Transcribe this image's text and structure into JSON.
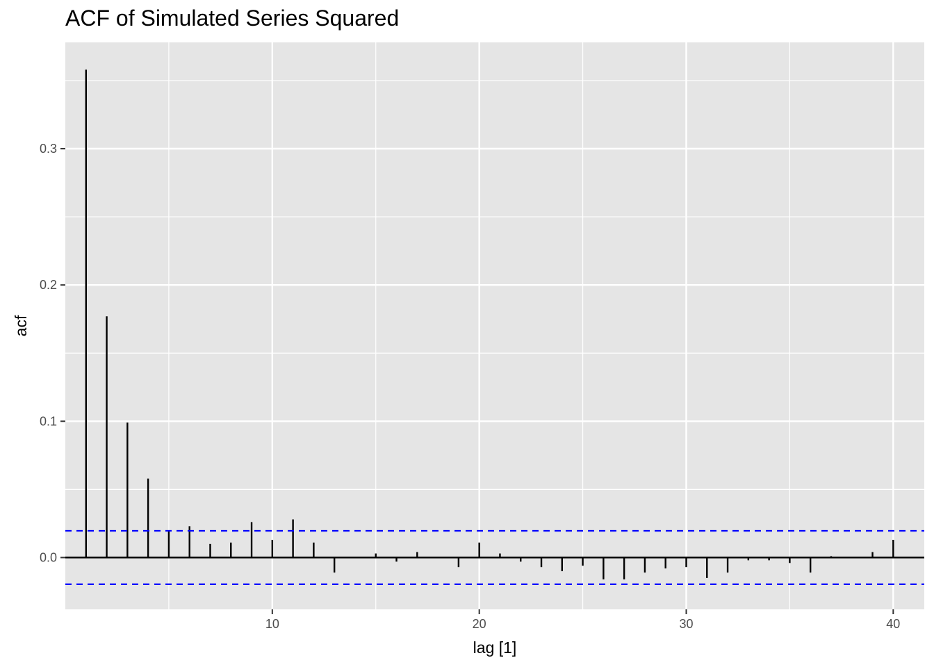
{
  "chart_data": {
    "type": "bar",
    "title": "ACF of Simulated Series Squared",
    "xlabel": "lag [1]",
    "ylabel": "acf",
    "xlim": [
      0,
      41.5
    ],
    "ylim": [
      -0.038,
      0.378
    ],
    "x_ticks": [
      10,
      20,
      30,
      40
    ],
    "x_tick_labels": [
      "10",
      "20",
      "30",
      "40"
    ],
    "y_ticks": [
      0.0,
      0.1,
      0.2,
      0.3
    ],
    "y_tick_labels": [
      "0.0",
      "0.1",
      "0.2",
      "0.3"
    ],
    "lags": [
      1,
      2,
      3,
      4,
      5,
      6,
      7,
      8,
      9,
      10,
      11,
      12,
      13,
      14,
      15,
      16,
      17,
      18,
      19,
      20,
      21,
      22,
      23,
      24,
      25,
      26,
      27,
      28,
      29,
      30,
      31,
      32,
      33,
      34,
      35,
      36,
      37,
      38,
      39,
      40
    ],
    "values": [
      0.358,
      0.177,
      0.099,
      0.058,
      0.02,
      0.023,
      0.01,
      0.011,
      0.026,
      0.013,
      0.028,
      0.011,
      -0.011,
      0.0,
      0.003,
      -0.003,
      0.004,
      0.0,
      -0.007,
      0.011,
      0.003,
      -0.003,
      -0.007,
      -0.01,
      -0.006,
      -0.016,
      -0.016,
      -0.011,
      -0.008,
      -0.007,
      -0.015,
      -0.011,
      -0.002,
      -0.002,
      -0.004,
      -0.011,
      0.001,
      0.0,
      0.004,
      0.013
    ],
    "confidence_bound": 0.0196,
    "grid": true,
    "colors": {
      "panel_background": "#e5e5e5",
      "grid": "#ffffff",
      "bars": "#000000",
      "confidence_lines": "#0000ff"
    }
  }
}
